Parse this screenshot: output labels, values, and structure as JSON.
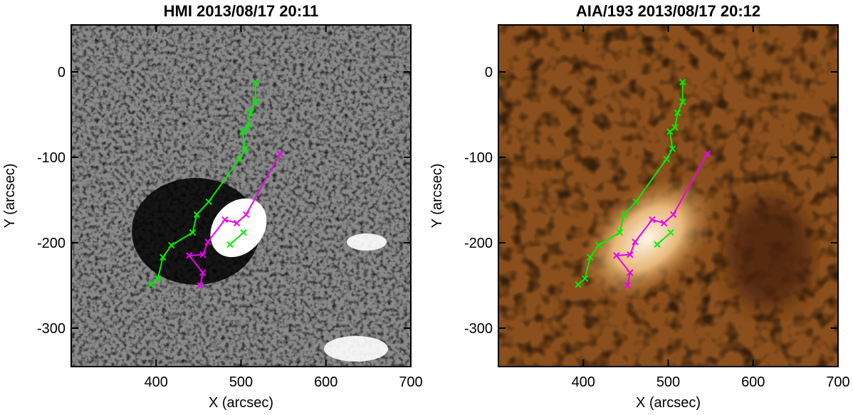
{
  "chart_data": [
    {
      "type": "line",
      "title": "HMI 2013/08/17 20:11",
      "xlabel": "X (arcsec)",
      "ylabel": "Y (arcsec)",
      "xlim": [
        300,
        700
      ],
      "ylim": [
        -345,
        55
      ],
      "xticks": [
        400,
        500,
        600,
        700
      ],
      "yticks": [
        0,
        -100,
        -200,
        -300
      ],
      "background": "magnetogram",
      "marker": "x",
      "series": [
        {
          "color": "#00ee00",
          "x": [
            517,
            517,
            511,
            508,
            502,
            505,
            498,
            462,
            448,
            443,
            418,
            408,
            402,
            394
          ],
          "values": [
            -12,
            -35,
            -48,
            -65,
            -70,
            -90,
            -102,
            -152,
            -167,
            -188,
            -203,
            -217,
            -242,
            -249
          ]
        },
        {
          "color": "#00ee00",
          "x": [
            487,
            503
          ],
          "values": [
            -202,
            -188
          ]
        },
        {
          "color": "#ee00ee",
          "x": [
            546,
            506,
            495,
            481,
            461,
            455,
            439,
            455,
            452
          ],
          "values": [
            -96,
            -167,
            -177,
            -173,
            -199,
            -214,
            -215,
            -235,
            -250
          ]
        }
      ]
    },
    {
      "type": "line",
      "title": "AIA/193 2013/08/17 20:12",
      "xlabel": "X (arcsec)",
      "ylabel": "Y (arcsec)",
      "xlim": [
        300,
        700
      ],
      "ylim": [
        -345,
        55
      ],
      "xticks": [
        400,
        500,
        600,
        700
      ],
      "yticks": [
        0,
        -100,
        -200,
        -300
      ],
      "background": "euv",
      "marker": "x",
      "series": [
        {
          "color": "#00ee00",
          "x": [
            517,
            517,
            511,
            508,
            502,
            505,
            498,
            462,
            448,
            443,
            418,
            408,
            402,
            394
          ],
          "values": [
            -12,
            -35,
            -48,
            -65,
            -70,
            -90,
            -102,
            -152,
            -167,
            -188,
            -203,
            -217,
            -242,
            -249
          ]
        },
        {
          "color": "#00ee00",
          "x": [
            487,
            503
          ],
          "values": [
            -202,
            -188
          ]
        },
        {
          "color": "#ee00ee",
          "x": [
            546,
            506,
            495,
            481,
            461,
            455,
            439,
            455,
            452
          ],
          "values": [
            -96,
            -167,
            -177,
            -173,
            -199,
            -214,
            -215,
            -235,
            -250
          ]
        }
      ]
    }
  ]
}
